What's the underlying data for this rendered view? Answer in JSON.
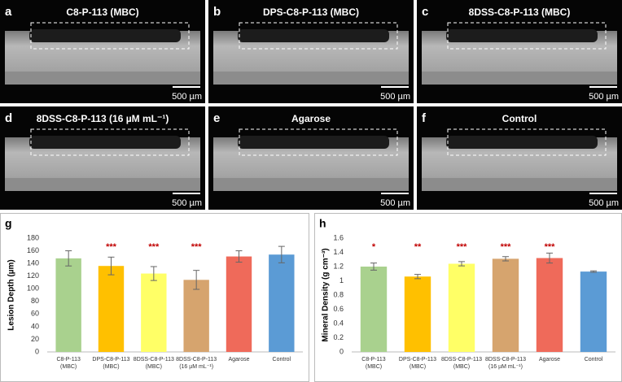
{
  "image_panels": [
    {
      "letter": "a",
      "title": "C8-P-113 (MBC)",
      "scale": "500 µm"
    },
    {
      "letter": "b",
      "title": "DPS-C8-P-113 (MBC)",
      "scale": "500 µm"
    },
    {
      "letter": "c",
      "title": "8DSS-C8-P-113 (MBC)",
      "scale": "500 µm"
    },
    {
      "letter": "d",
      "title": "8DSS-C8-P-113 (16 µM mL⁻¹)",
      "scale": "500 µm"
    },
    {
      "letter": "e",
      "title": "Agarose",
      "scale": "500 µm"
    },
    {
      "letter": "f",
      "title": "Control",
      "scale": "500 µm"
    }
  ],
  "chart_data": [
    {
      "type": "bar",
      "letter": "g",
      "y_label": "Lesion Depth (µm)",
      "categories": [
        [
          "C8-P-113",
          "(MBC)"
        ],
        [
          "DPS-C8-P-113",
          "(MBC)"
        ],
        [
          "8DSS-C8-P-113",
          "(MBC)"
        ],
        [
          "8DSS-C8-P-113",
          "(16 µM mL⁻¹)"
        ],
        [
          "Agarose"
        ],
        [
          "Control"
        ]
      ],
      "values": [
        148,
        136,
        124,
        114,
        151,
        154
      ],
      "errors": [
        12,
        14,
        11,
        15,
        9,
        13
      ],
      "significance": [
        null,
        "***",
        "***",
        "***",
        null,
        null
      ],
      "colors": [
        "#a9d18e",
        "#ffc000",
        "#ffff66",
        "#d6a46e",
        "#ef6a5a",
        "#5b9bd5"
      ],
      "ylim": [
        0,
        180
      ],
      "yticks": [
        0,
        20,
        40,
        60,
        80,
        100,
        120,
        140,
        160,
        180
      ]
    },
    {
      "type": "bar",
      "letter": "h",
      "y_label": "Mineral Density (g cm⁻³)",
      "categories": [
        [
          "C8-P-113",
          "(MBC)"
        ],
        [
          "DPS-C8-P-113",
          "(MBC)"
        ],
        [
          "8DSS-C8-P-113",
          "(MBC)"
        ],
        [
          "8DSS-C8-P-113",
          "(16 µM mL⁻¹)"
        ],
        [
          "Agarose"
        ],
        [
          "Control"
        ]
      ],
      "values": [
        1.2,
        1.06,
        1.24,
        1.31,
        1.32,
        1.13
      ],
      "errors": [
        0.05,
        0.03,
        0.03,
        0.03,
        0.07,
        0.01
      ],
      "significance": [
        "*",
        "**",
        "***",
        "***",
        "***",
        null
      ],
      "colors": [
        "#a9d18e",
        "#ffc000",
        "#ffff66",
        "#d6a46e",
        "#ef6a5a",
        "#5b9bd5"
      ],
      "ylim": [
        0,
        1.6
      ],
      "yticks": [
        0,
        0.2,
        0.4,
        0.6,
        0.8,
        1,
        1.2,
        1.4,
        1.6
      ]
    }
  ]
}
